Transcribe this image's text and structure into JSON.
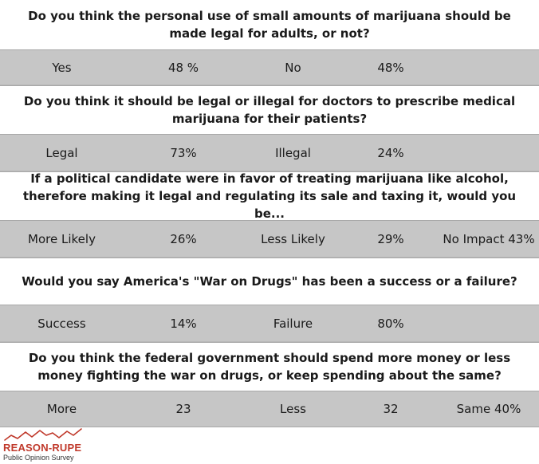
{
  "chart_data": {
    "type": "table",
    "rows": [
      {
        "question": "Do you think the personal use of small amounts of marijuana should be made legal for adults, or not?",
        "cells": [
          "Yes",
          "48 %",
          "No",
          "48%",
          ""
        ]
      },
      {
        "question": "Do you think it should be legal or illegal for doctors to prescribe medical marijuana for their patients?",
        "cells": [
          "Legal",
          "73%",
          "Illegal",
          "24%",
          ""
        ]
      },
      {
        "question": "If a political candidate were in favor of treating marijuana like alcohol, therefore making it legal and regulating its sale and taxing it, would you be...",
        "cells": [
          "More Likely",
          "26%",
          "Less Likely",
          "29%",
          "No Impact 43%"
        ]
      },
      {
        "question": "Would you say America's \"War on Drugs\" has been a success or a failure?",
        "cells": [
          "Success",
          "14%",
          "Failure",
          "80%",
          ""
        ]
      },
      {
        "question": "Do you think the federal government should spend more money or less money fighting the war on drugs, or keep spending about the same?",
        "cells": [
          "More",
          "23",
          "Less",
          "32",
          "Same 40%"
        ]
      }
    ]
  },
  "logo": {
    "name": "REASON-RUPE",
    "subtitle": "Public Opinion Survey",
    "icon": "zigzag-line-icon",
    "color": "#c0392b"
  },
  "colors": {
    "answer_row_bg": "#c6c6c6",
    "background": "#ffffff",
    "text": "#1a1a1a"
  }
}
